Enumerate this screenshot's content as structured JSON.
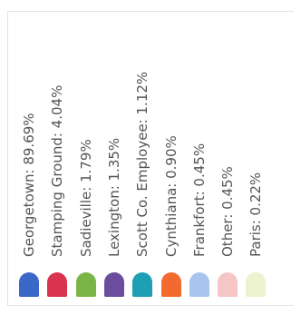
{
  "chart_data": {
    "type": "pie",
    "legend_placement": "bottom",
    "legend": [
      {
        "label": "Georgetown: 89.69%",
        "name": "Georgetown",
        "value": 89.69,
        "color": "#3a67c8"
      },
      {
        "label": "Stamping Ground: 4.04%",
        "name": "Stamping Ground",
        "value": 4.04,
        "color": "#d9334f"
      },
      {
        "label": "Sadieville: 1.79%",
        "name": "Sadieville",
        "value": 1.79,
        "color": "#7ab647"
      },
      {
        "label": "Lexington: 1.35%",
        "name": "Lexington",
        "value": 1.35,
        "color": "#6a4d9e"
      },
      {
        "label": "Scott Co. Employee: 1.12%",
        "name": "Scott Co. Employee",
        "value": 1.12,
        "color": "#1f9fb4"
      },
      {
        "label": "Cynthiana: 0.90%",
        "name": "Cynthiana",
        "value": 0.9,
        "color": "#f26a2e"
      },
      {
        "label": "Frankfort: 0.45%",
        "name": "Frankfort",
        "value": 0.45,
        "color": "#a9c5ef"
      },
      {
        "label": "Other: 0.45%",
        "name": "Other",
        "value": 0.45,
        "color": "#f6c6c6"
      },
      {
        "label": "Paris: 0.22%",
        "name": "Paris",
        "value": 0.22,
        "color": "#eef2cf"
      }
    ]
  }
}
